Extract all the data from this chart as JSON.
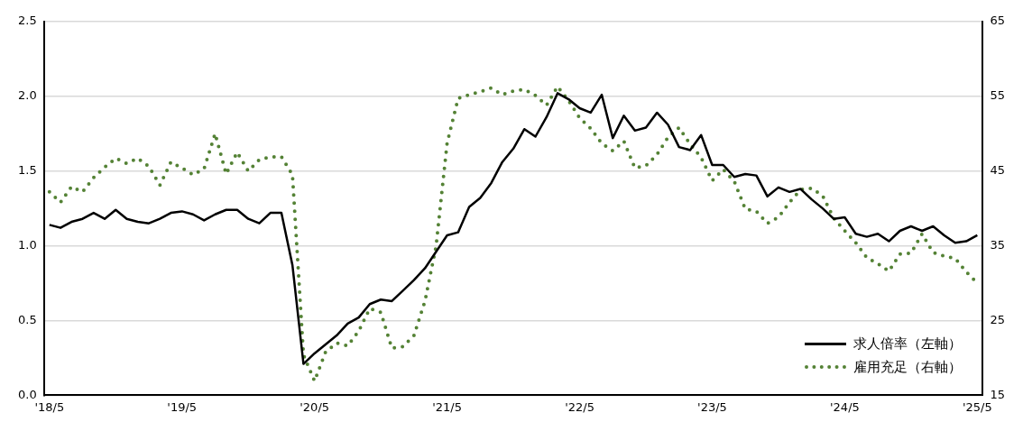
{
  "chart_data": {
    "type": "line",
    "categories": [
      "'18/5",
      null,
      null,
      null,
      null,
      null,
      null,
      null,
      null,
      null,
      null,
      null,
      "'19/5",
      null,
      null,
      null,
      null,
      null,
      null,
      null,
      null,
      null,
      null,
      null,
      "'20/5",
      null,
      null,
      null,
      null,
      null,
      null,
      null,
      null,
      null,
      null,
      null,
      "'21/5",
      null,
      null,
      null,
      null,
      null,
      null,
      null,
      null,
      null,
      null,
      null,
      "'22/5",
      null,
      null,
      null,
      null,
      null,
      null,
      null,
      null,
      null,
      null,
      null,
      "'23/5",
      null,
      null,
      null,
      null,
      null,
      null,
      null,
      null,
      null,
      null,
      null,
      "'24/5",
      null,
      null,
      null,
      null,
      null,
      null,
      null,
      null,
      null,
      null,
      null,
      "'25/5"
    ],
    "series": [
      {
        "name": "求人倍率（左軸）",
        "color": "#000000",
        "line_style": "solid",
        "values": [
          1.14,
          1.12,
          1.16,
          1.18,
          1.22,
          1.18,
          1.24,
          1.18,
          1.16,
          1.15,
          1.18,
          1.22,
          1.23,
          1.21,
          1.17,
          1.21,
          1.24,
          1.24,
          1.18,
          1.15,
          1.22,
          1.22,
          0.87,
          0.21,
          0.28,
          0.34,
          0.4,
          0.48,
          0.52,
          0.61,
          0.64,
          0.63,
          0.7,
          0.77,
          0.85,
          0.96,
          1.07,
          1.09,
          1.26,
          1.32,
          1.42,
          1.56,
          1.65,
          1.78,
          1.73,
          1.86,
          2.02,
          1.98,
          1.92,
          1.89,
          2.01,
          1.72,
          1.87,
          1.77,
          1.79,
          1.89,
          1.81,
          1.66,
          1.64,
          1.74,
          1.54,
          1.54,
          1.46,
          1.48,
          1.47,
          1.33,
          1.39,
          1.36,
          1.38,
          1.31,
          1.25,
          1.18,
          1.19,
          1.08,
          1.06,
          1.08,
          1.03,
          1.1,
          1.13,
          1.1,
          1.13,
          1.07,
          1.02,
          1.03,
          1.07
        ]
      },
      {
        "name": "雇用充足（右軸）",
        "color": "#548235",
        "line_style": "dotted",
        "axis": "y2",
        "values": [
          42.2,
          40.8,
          42.9,
          42.2,
          44.1,
          45.5,
          46.7,
          46.0,
          46.7,
          45.6,
          43.1,
          46.2,
          45.4,
          44.5,
          45.3,
          50.0,
          44.6,
          47.5,
          45.0,
          46.5,
          46.9,
          46.9,
          44.5,
          20.4,
          16.9,
          20.8,
          22.0,
          21.6,
          23.6,
          26.6,
          26.1,
          21.3,
          21.5,
          23.0,
          27.6,
          34.9,
          48.7,
          54.7,
          55.2,
          55.6,
          56.1,
          55.2,
          55.7,
          55.9,
          55.1,
          53.8,
          56.3,
          54.4,
          52.1,
          50.7,
          48.7,
          47.7,
          49.0,
          45.4,
          45.7,
          47.2,
          49.5,
          50.8,
          48.6,
          46.8,
          43.7,
          45.2,
          43.6,
          39.9,
          39.6,
          38.0,
          38.8,
          40.8,
          42.5,
          42.7,
          41.7,
          38.7,
          37.0,
          35.4,
          33.4,
          32.6,
          31.6,
          33.9,
          34.0,
          36.6,
          34.1,
          33.6,
          33.3,
          31.5,
          30.0
        ]
      }
    ],
    "ylim": [
      0,
      2.5
    ],
    "yticks": [
      {
        "value": 0,
        "label": "0.0"
      },
      {
        "value": 0.5,
        "label": "0.5"
      },
      {
        "value": 1,
        "label": "1.0"
      },
      {
        "value": 1.5,
        "label": "1.5"
      },
      {
        "value": 2,
        "label": "2.0"
      },
      {
        "value": 2.5,
        "label": "2.5"
      }
    ],
    "y2lim": [
      15,
      65
    ],
    "y2ticks": [
      15,
      25,
      35,
      45,
      55,
      65
    ],
    "grid": "y",
    "legend": "bottom right",
    "marker": "none"
  }
}
